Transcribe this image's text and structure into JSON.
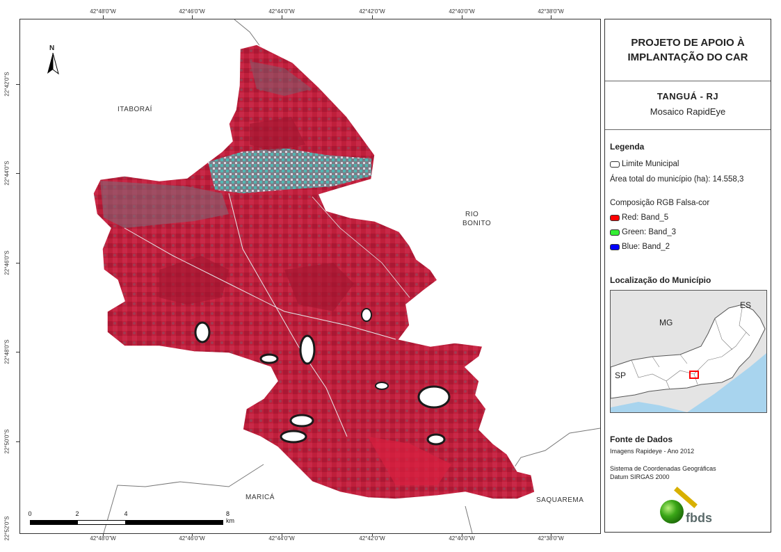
{
  "map": {
    "top_coords": [
      "42°48'0\"W",
      "42°46'0\"W",
      "42°44'0\"W",
      "42°42'0\"W",
      "42°40'0\"W",
      "42°38'0\"W"
    ],
    "bottom_coords": [
      "42°48'0\"W",
      "42°46'0\"W",
      "42°44'0\"W",
      "42°42'0\"W",
      "42°40'0\"W",
      "42°38'0\"W"
    ],
    "left_coords": [
      "22°42'0\"S",
      "22°44'0\"S",
      "22°46'0\"S",
      "22°48'0\"S",
      "22°50'0\"S",
      "22°52'0\"S"
    ],
    "places": {
      "itaborai": "ITABORAÍ",
      "rio_bonito_line1": "RIO",
      "rio_bonito_line2": "BONITO",
      "marica": "MARICÁ",
      "saquarema": "SAQUAREMA"
    },
    "north_label": "N",
    "scalebar": {
      "labels": [
        "0",
        "2",
        "4",
        "8 km"
      ]
    },
    "colors": {
      "vegetation": "#c0203a",
      "urban": "#3fcfc4",
      "clouds": "#ffffff"
    }
  },
  "panel": {
    "title": "PROJETO DE APOIO À IMPLANTAÇÃO DO CAR",
    "municipality": "TANGUÁ - RJ",
    "mosaic": "Mosaico RapidEye",
    "legend": {
      "heading": "Legenda",
      "boundary_label": "Limite Municipal",
      "area_label": "Área total do município (ha):  14.558,3",
      "composition_heading": "Composição RGB Falsa-cor",
      "bands": [
        {
          "label": "Red:    Band_5",
          "color": "#ff0000"
        },
        {
          "label": "Green:  Band_3",
          "color": "#33ee33"
        },
        {
          "label": "Blue:    Band_2",
          "color": "#0000ff"
        }
      ]
    },
    "location": {
      "heading": "Localização do Município",
      "labels": {
        "mg": "MG",
        "es": "ES",
        "sp": "SP"
      },
      "colors": {
        "ocean": "#a8d4ee",
        "state": "#ffffff",
        "neighbor": "#e4e4e4",
        "highlight": "#ff0000"
      }
    },
    "sources": {
      "heading": "Fonte de Dados",
      "line1": "Imagens Rapideye - Ano 2012",
      "line2": "Sistema de Coordenadas Geográficas",
      "line3": "Datum SIRGAS 2000"
    },
    "logo_text": "fbds"
  }
}
